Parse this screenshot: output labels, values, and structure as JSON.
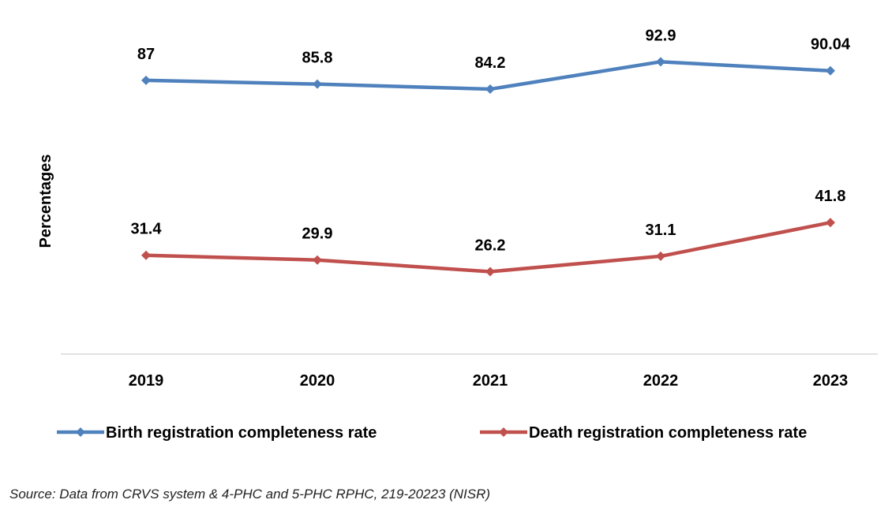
{
  "chart_data": {
    "type": "line",
    "categories": [
      "2019",
      "2020",
      "2021",
      "2022",
      "2023"
    ],
    "series": [
      {
        "name": "Birth registration completeness rate",
        "color": "#4F81BD",
        "values": [
          87,
          85.8,
          84.2,
          92.9,
          90.04
        ],
        "labels": [
          "87",
          "85.8",
          "84.2",
          "92.9",
          "90.04"
        ]
      },
      {
        "name": "Death registration completeness rate",
        "color": "#C0504D",
        "values": [
          31.4,
          29.9,
          26.2,
          31.1,
          41.8
        ],
        "labels": [
          "31.4",
          "29.9",
          "26.2",
          "31.1",
          "41.8"
        ]
      }
    ],
    "ylabel": "Percentages",
    "xlabel": "",
    "ylim": [
      0,
      100
    ],
    "grid": false,
    "legend": "bottom",
    "marker": "diamond"
  },
  "source": "Source: Data from CRVS system & 4-PHC and 5-PHC RPHC, 219-20223 (NISR)"
}
